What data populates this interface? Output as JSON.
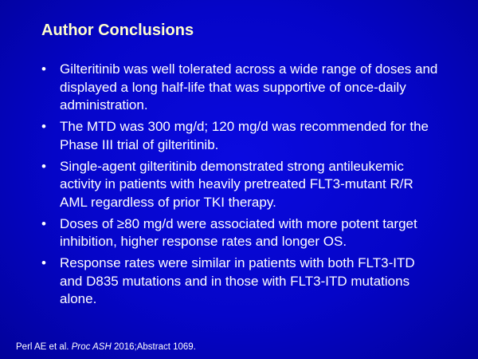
{
  "slide": {
    "title": "Author Conclusions",
    "bullets": [
      "Gilteritinib was well tolerated across a wide range of doses and displayed a long half-life that was supportive of once-daily administration.",
      "The MTD was 300 mg/d; 120 mg/d was recommended for the Phase III trial of gilteritinib.",
      "Single-agent gilteritinib demonstrated strong antileukemic activity in patients with heavily pretreated FLT3-mutant R/R AML regardless of prior TKI therapy.",
      "Doses of ≥80 mg/d were associated with more potent target inhibition, higher response rates and longer OS.",
      "Response rates were similar in patients with both FLT3-ITD and D835 mutations and in those with FLT3-ITD mutations alone."
    ],
    "footnote": {
      "authors": "Perl AE et al.",
      "journal": "Proc ASH",
      "details": "2016;Abstract 1069."
    }
  }
}
